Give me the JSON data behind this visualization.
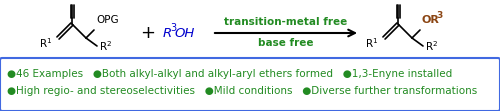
{
  "fig_width": 5.0,
  "fig_height": 1.11,
  "dpi": 100,
  "bg_color": "#ffffff",
  "arrow_color": "#228B22",
  "r3oh_color": "#0000CD",
  "or3_color": "#8B4513",
  "text_color": "#000000",
  "box_border_color": "#4169E1",
  "bullet_color": "#228B22",
  "arrow_text1": "transition-metal free",
  "arrow_text2": "base free",
  "line1": "●46 Examples   ●Both alkyl-alkyl and alkyl-aryl ethers formed   ●1,3-Enyne installed",
  "line2": "●High regio- and stereoselectivities   ●Mild conditions   ●Diverse further transformations"
}
